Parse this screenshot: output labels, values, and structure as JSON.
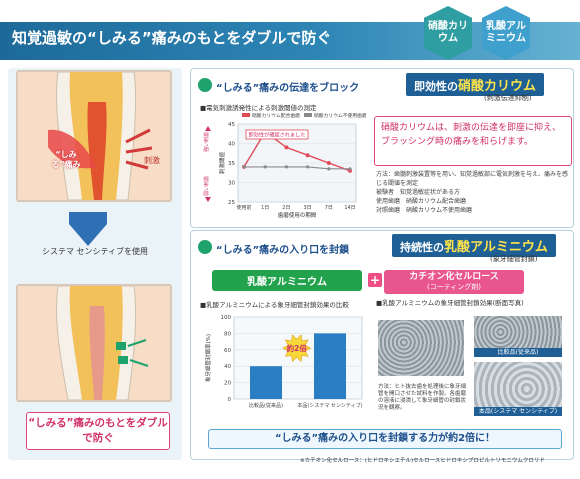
{
  "header": {
    "title": "知覚過敏の“しみる”痛みのもとをダブルで防ぐ",
    "badges": [
      "硝酸カリウム",
      "乳酸アルミニウム"
    ]
  },
  "left": {
    "shimiru_label": "“しみる”痛み",
    "shigeki_label": "刺激",
    "system_label": "システマ センシティブを使用",
    "callout": "“しみる”痛みのもとをダブルで防ぐ"
  },
  "panel1": {
    "section_title": "“しみる”痛みの伝達をブロック",
    "ribbon_prefix": "即効性の",
    "ribbon_highlight": "硝酸カリウム",
    "ribbon_sub": "(刺激伝達抑制)",
    "chart_title": "■電気刺激誘発性による刺激閾値の測定",
    "description": "硝酸カリウムは、刺激の伝達を即座に抑え、ブラッシング時の痛みを和らげます。",
    "notes": [
      "方法：歯髄刺激装置等を用い、知覚過敏部に電気刺激を与え、痛みを感じる閾値を測定",
      "被験者　知覚過敏症状がある方",
      "使用歯磨　硝酸カリウム配合歯磨",
      "対照歯磨　硝酸カリウム不使用歯磨"
    ]
  },
  "chart_data": [
    {
      "type": "line",
      "title": "■電気刺激誘発性による刺激閾値の測定",
      "series": [
        {
          "name": "硝酸カリウム配合歯磨",
          "values": [
            34,
            43,
            39,
            37,
            35,
            33
          ]
        },
        {
          "name": "硝酸カリウム不使用歯磨",
          "values": [
            34,
            34,
            34,
            34,
            33.5,
            33.5
          ]
        }
      ],
      "categories": [
        "使用前",
        "1日",
        "2日",
        "3日",
        "7日",
        "14日"
      ],
      "xlabel": "歯磨使用の期間",
      "ylabel": "刺激閾値",
      "axis_annotations": [
        "強い刺激",
        "弱い刺激"
      ],
      "ylim": [
        25,
        45
      ],
      "yticks": [
        25,
        30,
        35,
        40,
        45
      ],
      "annotation": "即効性が確認されました",
      "colors": [
        "#e24a5a",
        "#8a8a8a"
      ]
    },
    {
      "type": "bar",
      "title": "■乳酸アルミニウムによる象牙細管封鎖効果の比較",
      "categories": [
        "比較品(従来品)",
        "本品(システマ センシティブ)"
      ],
      "values": [
        40,
        80
      ],
      "ylabel": "象牙細管封鎖率(%)",
      "ylim": [
        0,
        100
      ],
      "yticks": [
        0,
        20,
        40,
        60,
        80,
        100
      ],
      "annotation": "約2倍",
      "colors": [
        "#2a7fc4"
      ]
    }
  ],
  "panel2": {
    "section_title": "“しみる”痛みの入り口を封鎖",
    "ribbon_prefix": "持続性の",
    "ribbon_highlight": "乳酸アルミニウム",
    "ribbon_sub": "(象牙細管封鎖)",
    "green_pill": "乳酸アルミニウム",
    "cation_main": "カチオン化セルロース",
    "cation_sub": "(コーティング剤)",
    "micro_title": "■乳酸アルミニウムの象牙細管封鎖効果(断面写真)",
    "micro_top_label": "比較品(従来品)",
    "micro_bottom_label": "本品(システマ センシティブ)",
    "micro_note": "方法：ヒト抜去歯を処理後に象牙細管を開口させた試料を作製。各歯磨の溶液に浸漬して象牙細管の封鎖状況を観察。",
    "banner": "“しみる”痛みの入り口を封鎖する力が約2倍に！",
    "footnote": "※カチオン化セルロース：(ヒドロキシエチル)セルロースヒドロキシプロピルトリモニウムクロリド"
  }
}
